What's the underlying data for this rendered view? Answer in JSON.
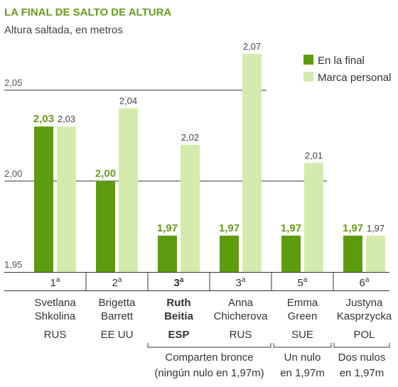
{
  "title": "LA FINAL DE SALTO DE ALTURA",
  "subtitle": "Altura saltada, en metros",
  "colors": {
    "final": "#5d9c0e",
    "personal": "#d5ebae",
    "title": "#6a9a1f"
  },
  "chart_data": {
    "type": "bar",
    "title": "LA FINAL DE SALTO DE ALTURA",
    "ylabel": "Altura saltada, en metros",
    "ylim": [
      1.95,
      2.08
    ],
    "yticks": [
      "1,95",
      "2,00",
      "2,05"
    ],
    "legend": {
      "placement": "top-right",
      "entries": [
        "En la final",
        "Marca personal"
      ]
    },
    "categories": [
      {
        "rank": "1",
        "rank_sup": "a",
        "name1": "Svetlana",
        "name2": "Shkolina",
        "country": "RUS",
        "bold": false
      },
      {
        "rank": "2",
        "rank_sup": "a",
        "name1": "Brigetta",
        "name2": "Barrett",
        "country": "EE UU",
        "bold": false
      },
      {
        "rank": "3",
        "rank_sup": "a",
        "name1": "Ruth",
        "name2": "Beitia",
        "country": "ESP",
        "bold": true
      },
      {
        "rank": "3",
        "rank_sup": "a",
        "name1": "Anna",
        "name2": "Chicherova",
        "country": "RUS",
        "bold": false
      },
      {
        "rank": "5",
        "rank_sup": "a",
        "name1": "Emma",
        "name2": "Green",
        "country": "SUE",
        "bold": false
      },
      {
        "rank": "6",
        "rank_sup": "a",
        "name1": "Justyna",
        "name2": "Kasprzycka",
        "country": "POL",
        "bold": false
      }
    ],
    "series": [
      {
        "name": "En la final",
        "values": [
          2.03,
          2.0,
          1.97,
          1.97,
          1.97,
          1.97
        ],
        "labels": [
          "2,03",
          "2,00",
          "1,97",
          "1,97",
          "1,97",
          "1,97"
        ]
      },
      {
        "name": "Marca personal",
        "values": [
          2.03,
          2.04,
          2.02,
          2.07,
          2.01,
          1.97
        ],
        "labels": [
          "2,03",
          "2,04",
          "2,02",
          "2,07",
          "2,01",
          "1,97"
        ]
      }
    ],
    "notes": [
      {
        "line1": "Comparten bronce",
        "line2": "(ningún nulo en 1,97m)"
      },
      {
        "line1": "Un nulo",
        "line2": "en 1,97m"
      },
      {
        "line1": "Dos nulos",
        "line2": "en 1,97m"
      }
    ]
  }
}
